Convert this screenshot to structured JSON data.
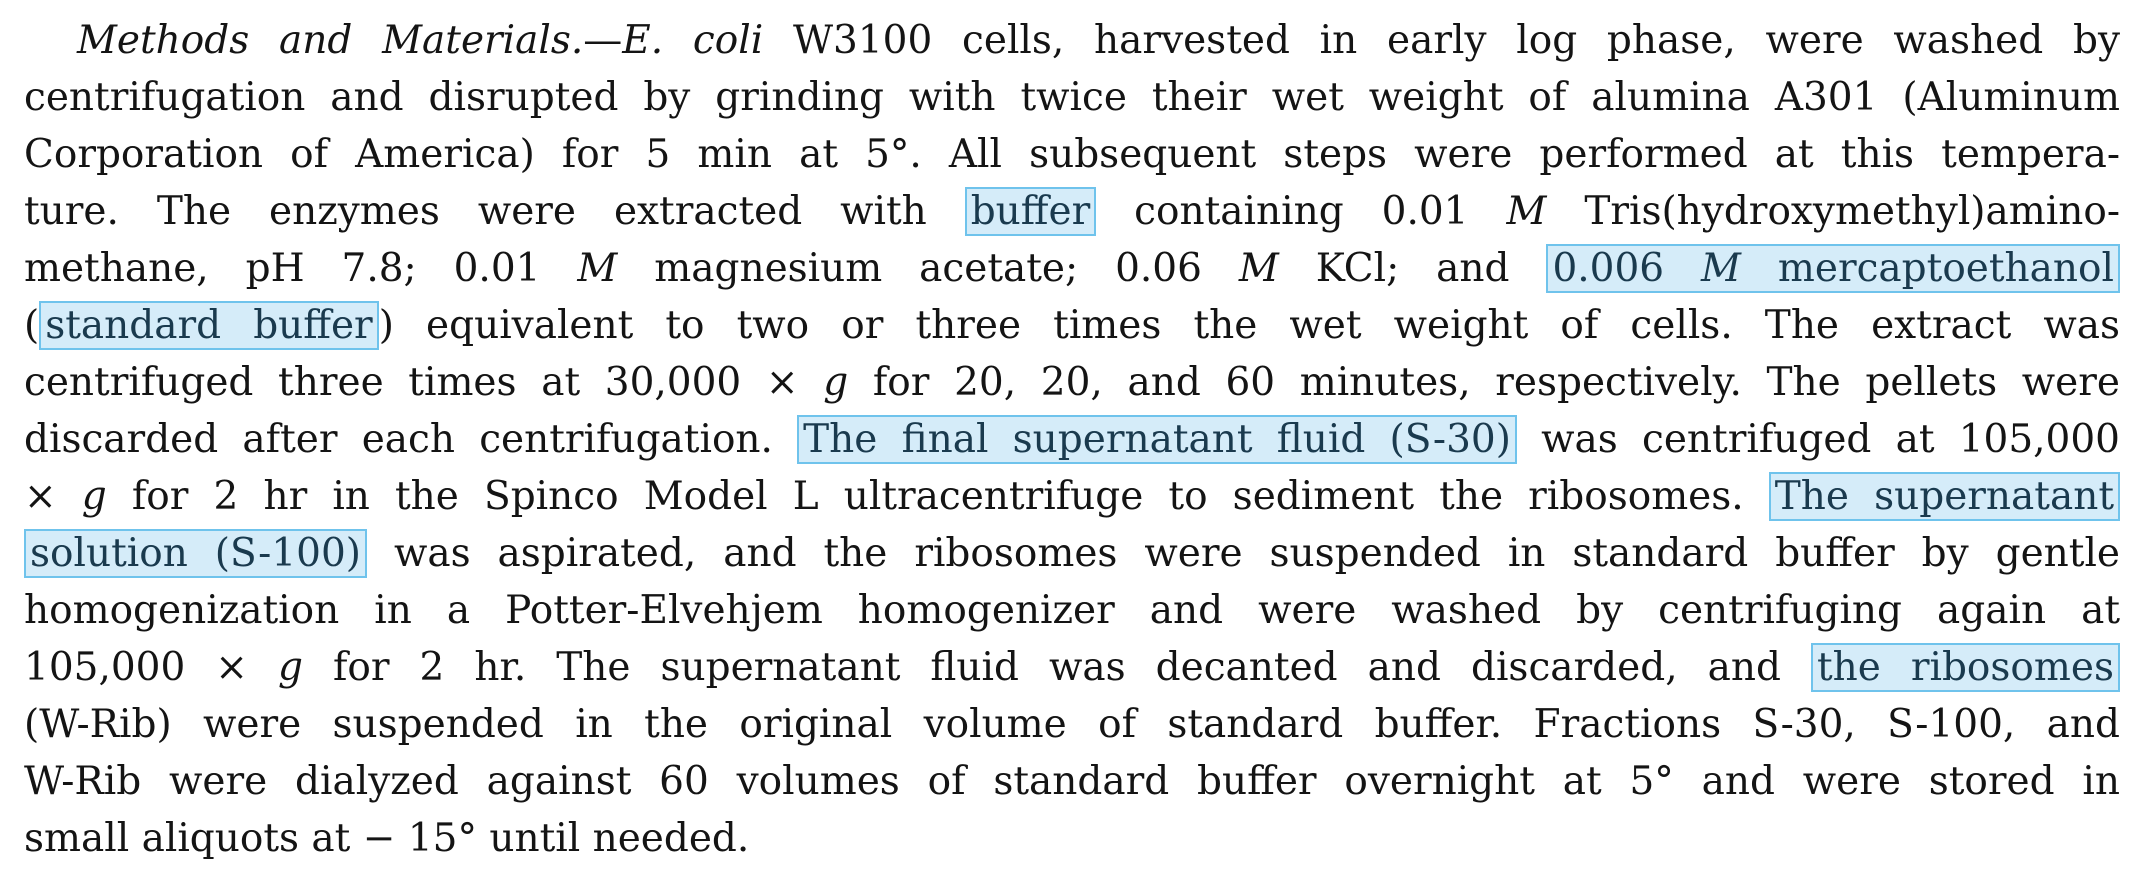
{
  "paragraph": {
    "lines": [
      {
        "parts": [
          "Methods and Materials.",
          "—",
          "E. coli",
          " W3100 cells, harvested in early log phase, were washed by"
        ]
      },
      {
        "parts": [
          "centrifugation and disrupted by grinding with twice their wet weight of alumina A301 (Aluminum"
        ]
      },
      {
        "parts": [
          "Corporation of America) for 5 min at 5°.  All subsequent steps were performed at this tempera-"
        ]
      },
      {
        "parts": [
          "ture.  The enzymes were extracted with ",
          "buffer",
          " containing 0.01 ",
          "M",
          " Tris(hydroxymethyl)amino-"
        ]
      },
      {
        "parts": [
          "methane, pH 7.8;  0.01 ",
          "M",
          " magnesium acetate;  0.06 ",
          "M",
          " KCl;  and ",
          "0.006 ",
          "M",
          " mercaptoethanol"
        ]
      },
      {
        "parts": [
          "(",
          "standard buffer",
          ") equivalent to two or three times the wet weight of cells.  The extract was"
        ]
      },
      {
        "parts": [
          "centrifuged three times at 30,000 × ",
          "g",
          " for 20, 20, and 60 minutes, respectively.  The pellets were"
        ]
      },
      {
        "parts": [
          "discarded after each centrifugation.  ",
          "The final supernatant fluid (S-30)",
          " was centrifuged at 105,000"
        ]
      },
      {
        "parts": [
          "× ",
          "g",
          " for 2 hr in the Spinco Model L ultracentrifuge to sediment the ribosomes.  ",
          "The supernatant"
        ]
      },
      {
        "parts": [
          "solution (S-100)",
          " was aspirated, and the ribosomes were suspended in standard buffer by gentle"
        ]
      },
      {
        "parts": [
          "homogenization in a Potter-Elvehjem homogenizer and were washed by centrifuging again at"
        ]
      },
      {
        "parts": [
          "105,000 × ",
          "g",
          " for 2 hr.  The supernatant fluid was decanted and discarded, and ",
          "the ribosomes"
        ]
      },
      {
        "parts": [
          "(W-Rib) were suspended in the original volume of standard buffer.  Fractions S-30, S-100, and"
        ]
      },
      {
        "parts": [
          "W-Rib were dialyzed against 60 volumes of standard buffer overnight at 5° and were stored in"
        ]
      },
      {
        "parts": [
          "small aliquots at  −  15°  until needed."
        ]
      }
    ]
  },
  "highlight": {
    "fill": "#d5ecf9",
    "border": "#6fc3ec"
  }
}
